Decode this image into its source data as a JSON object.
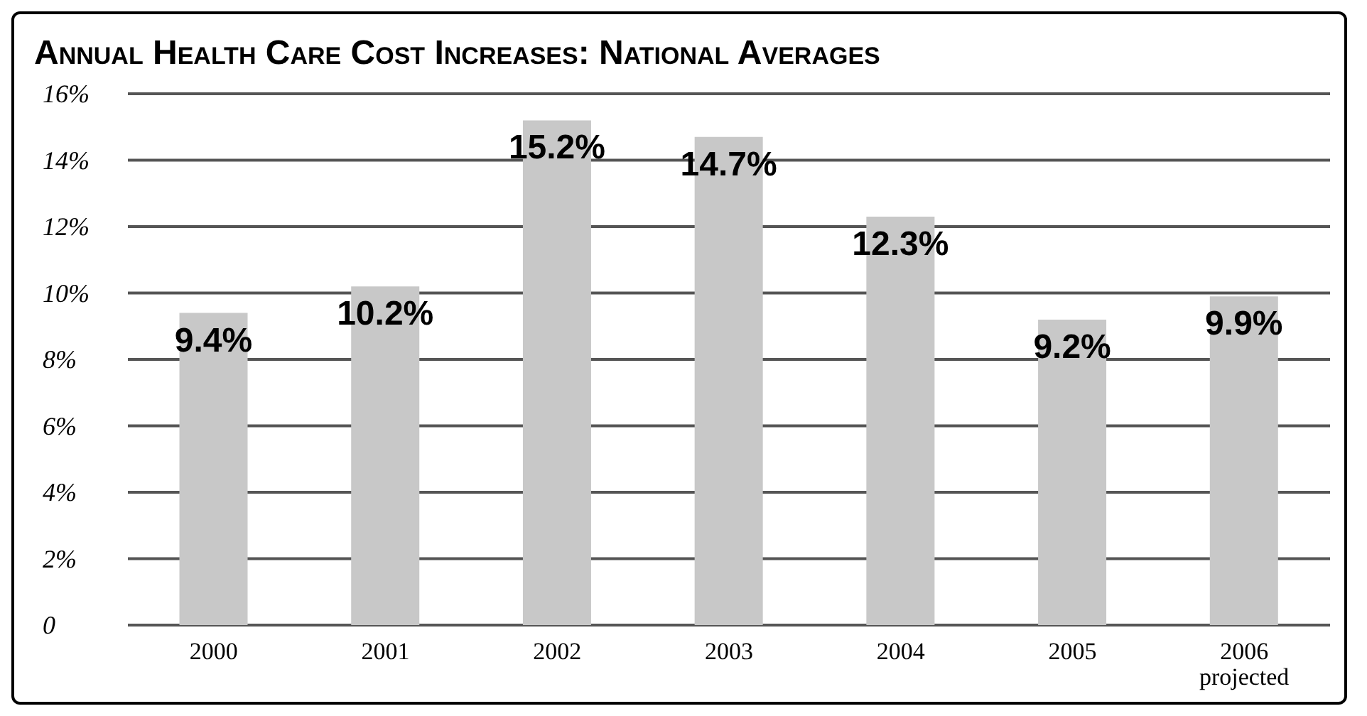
{
  "chart_data": {
    "type": "bar",
    "title": "Annual Health Care Cost Increases: National Averages",
    "categories": [
      "2000",
      "2001",
      "2002",
      "2003",
      "2004",
      "2005",
      "2006\nprojected"
    ],
    "values": [
      9.4,
      10.2,
      15.2,
      14.7,
      12.3,
      9.2,
      9.9
    ],
    "value_labels": [
      "9.4%",
      "10.2%",
      "15.2%",
      "14.7%",
      "12.3%",
      "9.2%",
      "9.9%"
    ],
    "color": "#c8c8c8",
    "ylim": [
      0,
      16
    ],
    "yticks": [
      0,
      {
        "value": 2,
        "label": "2%"
      },
      {
        "value": 4,
        "label": "4%"
      },
      {
        "value": 6,
        "label": "6%"
      },
      {
        "value": 8,
        "label": "8%"
      },
      {
        "value": 10,
        "label": "10%"
      },
      {
        "value": 12,
        "label": "12%"
      },
      {
        "value": 14,
        "label": "14%"
      },
      {
        "value": 16,
        "label": "16%"
      }
    ],
    "grid": "y",
    "legend": false
  }
}
